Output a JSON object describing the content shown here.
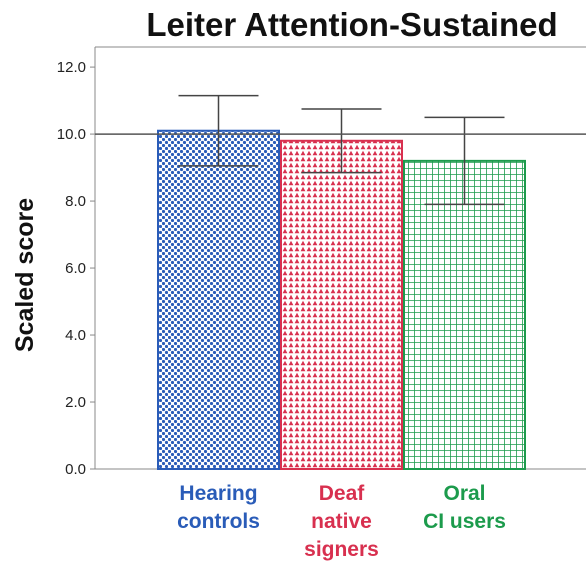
{
  "chart_data": {
    "type": "bar",
    "title": "Leiter Attention-Sustained",
    "ylabel": "Scaled score",
    "categories": [
      "Hearing\ncontrols",
      "Deaf\nnative\nsigners",
      "Oral\nCI users"
    ],
    "values": [
      10.1,
      9.8,
      9.2
    ],
    "errors": [
      1.05,
      0.95,
      1.3
    ],
    "colors": [
      "#2a5cb8",
      "#d8304f",
      "#1c9b4c"
    ],
    "reference_line": 10,
    "ylim": [
      0,
      12.6
    ],
    "yticks": [
      {
        "value": 0,
        "label": "0.0"
      },
      {
        "value": 2,
        "label": "2.0"
      },
      {
        "value": 4,
        "label": "4.0"
      },
      {
        "value": 6,
        "label": "6.0"
      },
      {
        "value": 8,
        "label": "8.0"
      },
      {
        "value": 10,
        "label": "10.0"
      },
      {
        "value": 12,
        "label": "12.0"
      }
    ]
  }
}
